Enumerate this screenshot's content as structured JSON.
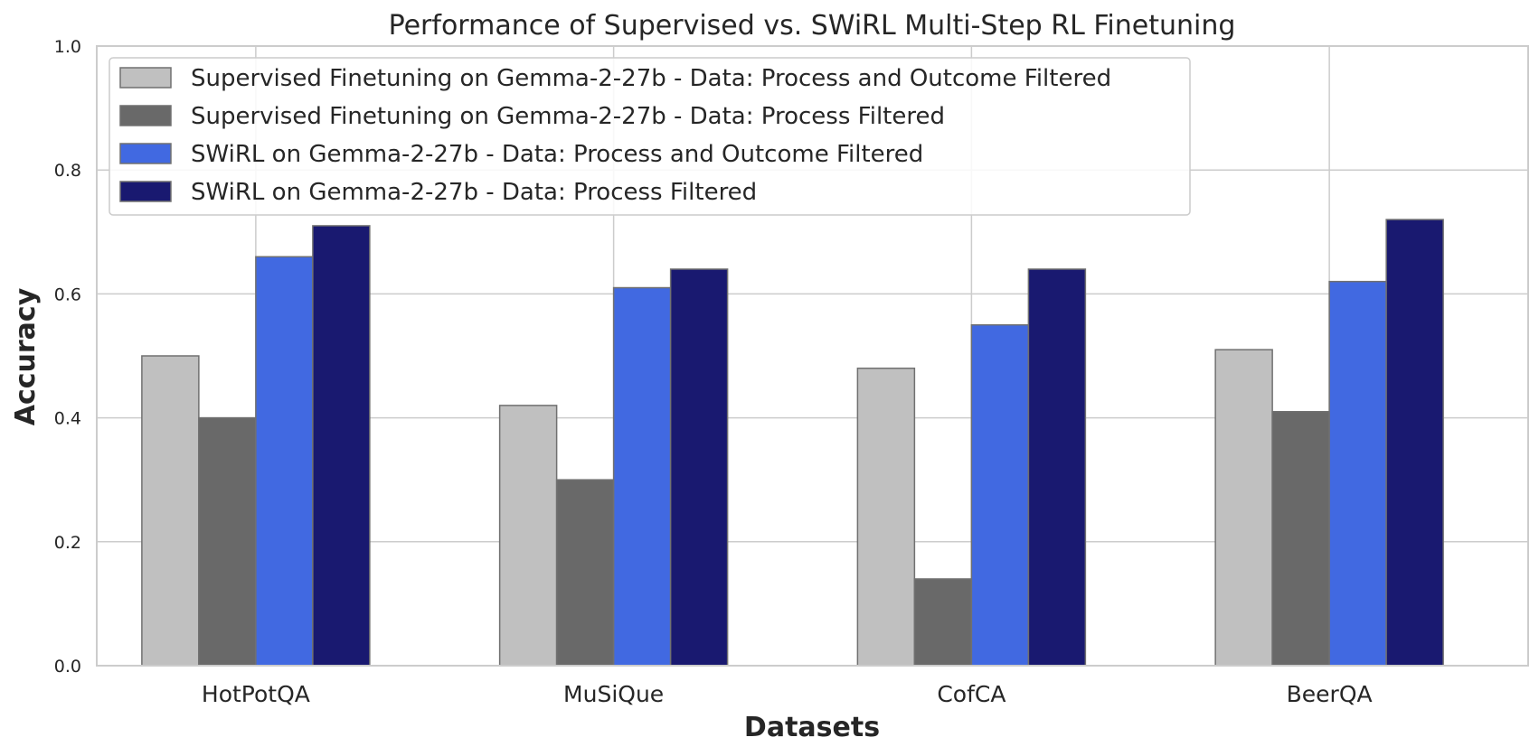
{
  "chart_data": {
    "type": "bar",
    "title": "Performance of Supervised vs. SWiRL Multi-Step RL Finetuning",
    "xlabel": "Datasets",
    "ylabel": "Accuracy",
    "ylim": [
      0,
      1.0
    ],
    "yticks": [
      "0.0",
      "0.2",
      "0.4",
      "0.6",
      "0.8",
      "1.0"
    ],
    "categories": [
      "HotPotQA",
      "MuSiQue",
      "CofCA",
      "BeerQA"
    ],
    "grid": true,
    "legend_position": "top-left",
    "series": [
      {
        "name": "Supervised Finetuning on Gemma-2-27b - Data: Process and Outcome Filtered",
        "color": "#c0c0c0",
        "values": [
          0.5,
          0.42,
          0.48,
          0.51
        ]
      },
      {
        "name": "Supervised Finetuning on Gemma-2-27b - Data: Process Filtered",
        "color": "#696969",
        "values": [
          0.4,
          0.3,
          0.14,
          0.41
        ]
      },
      {
        "name": "SWiRL on Gemma-2-27b - Data: Process and Outcome Filtered",
        "color": "#4169e1",
        "values": [
          0.66,
          0.61,
          0.55,
          0.62
        ]
      },
      {
        "name": "SWiRL on Gemma-2-27b - Data: Process Filtered",
        "color": "#191970",
        "values": [
          0.71,
          0.64,
          0.64,
          0.72
        ]
      }
    ]
  }
}
